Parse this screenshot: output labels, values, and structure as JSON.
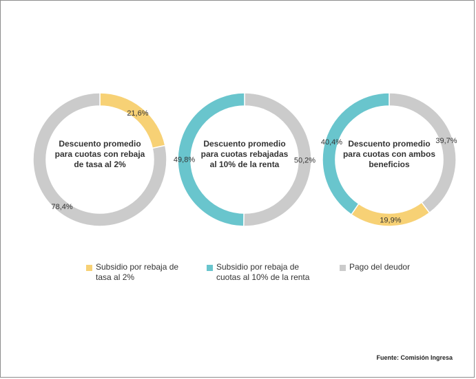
{
  "colors": {
    "yellow": "#F7D175",
    "teal": "#69C5CD",
    "gray": "#CBCBCB"
  },
  "chart_data": [
    {
      "type": "pie",
      "title": "Descuento promedio para cuotas con rebaja de tasa al 2%",
      "slices": [
        {
          "label": "Subsidio por rebaja de tasa al 2%",
          "value": 21.6,
          "display": "21,6%",
          "color": "#F7D175"
        },
        {
          "label": "Pago del deudor",
          "value": 78.4,
          "display": "78,4%",
          "color": "#CBCBCB"
        }
      ]
    },
    {
      "type": "pie",
      "title": "Descuento promedio para cuotas rebajadas al 10% de la renta",
      "slices": [
        {
          "label": "Pago del deudor",
          "value": 50.2,
          "display": "50,2%",
          "color": "#CBCBCB"
        },
        {
          "label": "Subsidio por rebaja de cuotas al 10% de la renta",
          "value": 49.8,
          "display": "49,8%",
          "color": "#69C5CD"
        }
      ]
    },
    {
      "type": "pie",
      "title": "Descuento promedio para cuotas con ambos beneficios",
      "slices": [
        {
          "label": "Pago del deudor",
          "value": 39.7,
          "display": "39,7%",
          "color": "#CBCBCB"
        },
        {
          "label": "Subsidio por rebaja de tasa al 2%",
          "value": 19.9,
          "display": "19,9%",
          "color": "#F7D175"
        },
        {
          "label": "Subsidio por rebaja de cuotas al 10% de la renta",
          "value": 40.4,
          "display": "40,4%",
          "color": "#69C5CD"
        }
      ]
    }
  ],
  "legend": [
    {
      "label": "Subsidio por rebaja de tasa al 2%",
      "color": "#F7D175"
    },
    {
      "label": "Subsidio por rebaja de cuotas al 10% de la renta",
      "color": "#69C5CD"
    },
    {
      "label": "Pago del deudor",
      "color": "#CBCBCB"
    }
  ],
  "source": "Fuente: Comisión Ingresa"
}
